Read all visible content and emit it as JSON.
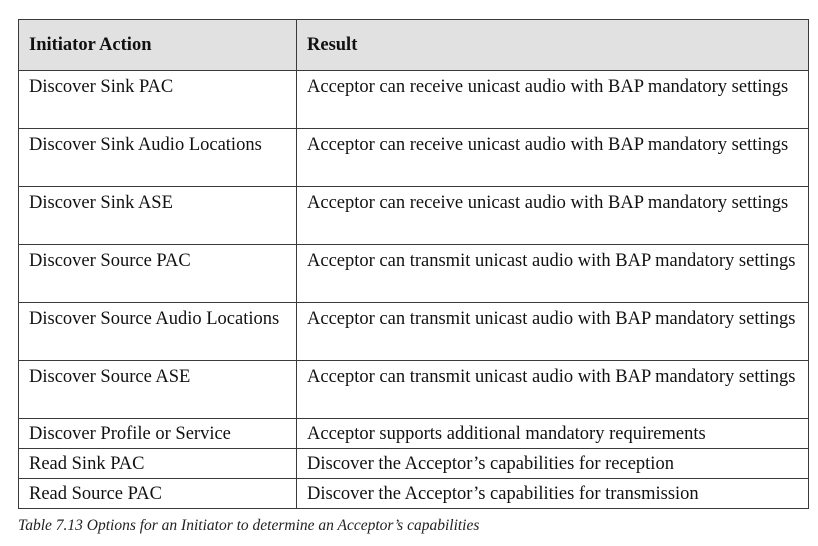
{
  "table": {
    "headers": [
      "Initiator Action",
      "Result"
    ],
    "rows": [
      {
        "action": "Discover Sink PAC",
        "result": "Acceptor can receive unicast audio with BAP mandatory settings"
      },
      {
        "action": "Discover Sink Audio Locations",
        "result": "Acceptor can receive unicast audio with BAP mandatory settings"
      },
      {
        "action": "Discover Sink ASE",
        "result": "Acceptor can receive unicast audio with BAP mandatory settings"
      },
      {
        "action": "Discover Source PAC",
        "result": "Acceptor can transmit unicast audio with BAP mandatory settings"
      },
      {
        "action": "Discover Source Audio Locations",
        "result": "Acceptor can transmit unicast audio with BAP mandatory settings"
      },
      {
        "action": "Discover Source ASE",
        "result": "Acceptor can transmit unicast audio with BAP mandatory settings"
      },
      {
        "action": "Discover Profile or Service",
        "result": "Acceptor supports additional mandatory requirements"
      },
      {
        "action": "Read Sink PAC",
        "result": "Discover the Acceptor’s capabilities for reception"
      },
      {
        "action": "Read Source PAC",
        "result": "Discover the Acceptor’s capabilities for transmission"
      }
    ]
  },
  "caption": "Table 7.13  Options for an Initiator to determine an Acceptor’s capabilities"
}
